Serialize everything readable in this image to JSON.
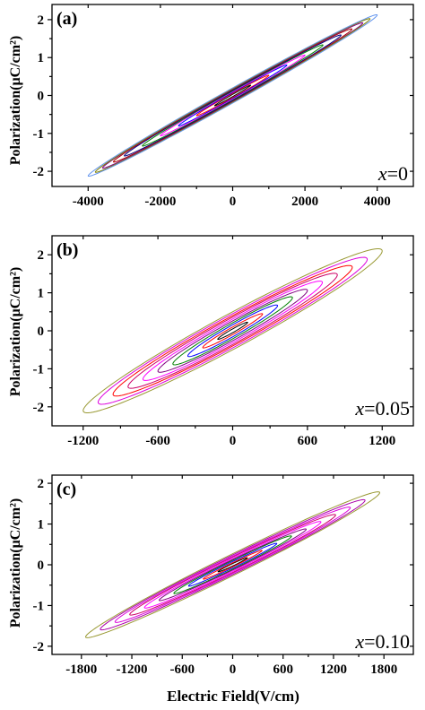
{
  "chart_data": [
    {
      "type": "line",
      "panel_label": "(a)",
      "composition": {
        "var": "x",
        "value": "=0"
      },
      "ylabel": "Polarization(μC/cm²)",
      "xlabel": "",
      "xlim": [
        -5000,
        5000
      ],
      "ylim": [
        -2.4,
        2.4
      ],
      "xticks": [
        -4000,
        -2000,
        0,
        2000,
        4000
      ],
      "xtick_labels": [
        "-4000",
        "-2000",
        "0",
        "2000",
        "4000"
      ],
      "yticks": [
        -2,
        -1,
        0,
        1,
        2
      ],
      "ytick_labels": [
        "-2",
        "-1",
        "0",
        "1",
        "2"
      ],
      "loops": [
        {
          "emax": 500,
          "pmax": 0.27,
          "pr": 0.03,
          "color": "#000000"
        },
        {
          "emax": 1000,
          "pmax": 0.53,
          "pr": 0.06,
          "color": "#ff0000"
        },
        {
          "emax": 1500,
          "pmax": 0.8,
          "pr": 0.08,
          "color": "#0000ff"
        },
        {
          "emax": 2000,
          "pmax": 1.06,
          "pr": 0.1,
          "color": "#ff00ff"
        },
        {
          "emax": 2500,
          "pmax": 1.33,
          "pr": 0.12,
          "color": "#008000"
        },
        {
          "emax": 3000,
          "pmax": 1.59,
          "pr": 0.14,
          "color": "#000080"
        },
        {
          "emax": 3300,
          "pmax": 1.75,
          "pr": 0.16,
          "color": "#aa0000"
        },
        {
          "emax": 3600,
          "pmax": 1.91,
          "pr": 0.17,
          "color": "#800080"
        },
        {
          "emax": 3800,
          "pmax": 2.02,
          "pr": 0.18,
          "color": "#808000"
        },
        {
          "emax": 4000,
          "pmax": 2.12,
          "pr": 0.2,
          "color": "#6495ed"
        }
      ]
    },
    {
      "type": "line",
      "panel_label": "(b)",
      "composition": {
        "var": "x",
        "value": "=0.05"
      },
      "ylabel": "Polarization(μC/cm²)",
      "xlabel": "",
      "xlim": [
        -1450,
        1450
      ],
      "ylim": [
        -2.5,
        2.5
      ],
      "xticks": [
        -1200,
        -600,
        0,
        600,
        1200
      ],
      "xtick_labels": [
        "-1200",
        "-600",
        "0",
        "600",
        "1200"
      ],
      "yticks": [
        -2,
        -1,
        0,
        1,
        2
      ],
      "ytick_labels": [
        "-2",
        "-1",
        "0",
        "1",
        "2"
      ],
      "loops": [
        {
          "emax": 120,
          "pmax": 0.22,
          "pr": 0.05,
          "color": "#000000"
        },
        {
          "emax": 240,
          "pmax": 0.44,
          "pr": 0.1,
          "color": "#ff0000"
        },
        {
          "emax": 360,
          "pmax": 0.66,
          "pr": 0.16,
          "color": "#0000ff"
        },
        {
          "emax": 480,
          "pmax": 0.87,
          "pr": 0.21,
          "color": "#008000"
        },
        {
          "emax": 600,
          "pmax": 1.06,
          "pr": 0.26,
          "color": "#800080"
        },
        {
          "emax": 720,
          "pmax": 1.27,
          "pr": 0.31,
          "color": "#ff00ff"
        },
        {
          "emax": 840,
          "pmax": 1.47,
          "pr": 0.36,
          "color": "#cc0066"
        },
        {
          "emax": 960,
          "pmax": 1.67,
          "pr": 0.4,
          "color": "#ff0000"
        },
        {
          "emax": 1080,
          "pmax": 1.88,
          "pr": 0.45,
          "color": "#dd00dd"
        },
        {
          "emax": 1200,
          "pmax": 2.1,
          "pr": 0.5,
          "color": "#999933"
        }
      ]
    },
    {
      "type": "line",
      "panel_label": "(c)",
      "composition": {
        "var": "x",
        "value": "=0.10"
      },
      "ylabel": "Polarization(μC/cm²)",
      "xlabel": "Electric Field(V/cm)",
      "xlim": [
        -2150,
        2150
      ],
      "ylim": [
        -2.2,
        2.2
      ],
      "xticks": [
        -1800,
        -1200,
        -600,
        0,
        600,
        1200,
        1800
      ],
      "xtick_labels": [
        "-1800",
        "-1200",
        "-600",
        "0",
        "600",
        "1200",
        "1800"
      ],
      "yticks": [
        -2,
        -1,
        0,
        1,
        2
      ],
      "ytick_labels": [
        "-2",
        "-1",
        "0",
        "1",
        "2"
      ],
      "loops": [
        {
          "emax": 175,
          "pmax": 0.17,
          "pr": 0.03,
          "color": "#000000"
        },
        {
          "emax": 350,
          "pmax": 0.35,
          "pr": 0.05,
          "color": "#ff0000"
        },
        {
          "emax": 525,
          "pmax": 0.52,
          "pr": 0.08,
          "color": "#0000ff"
        },
        {
          "emax": 700,
          "pmax": 0.7,
          "pr": 0.11,
          "color": "#008000"
        },
        {
          "emax": 875,
          "pmax": 0.87,
          "pr": 0.13,
          "color": "#800080"
        },
        {
          "emax": 1050,
          "pmax": 1.05,
          "pr": 0.16,
          "color": "#ff00ff"
        },
        {
          "emax": 1225,
          "pmax": 1.22,
          "pr": 0.19,
          "color": "#cc0066"
        },
        {
          "emax": 1400,
          "pmax": 1.4,
          "pr": 0.21,
          "color": "#dd00dd"
        },
        {
          "emax": 1575,
          "pmax": 1.58,
          "pr": 0.24,
          "color": "#aa00aa"
        },
        {
          "emax": 1750,
          "pmax": 1.77,
          "pr": 0.27,
          "color": "#999933"
        }
      ]
    }
  ]
}
